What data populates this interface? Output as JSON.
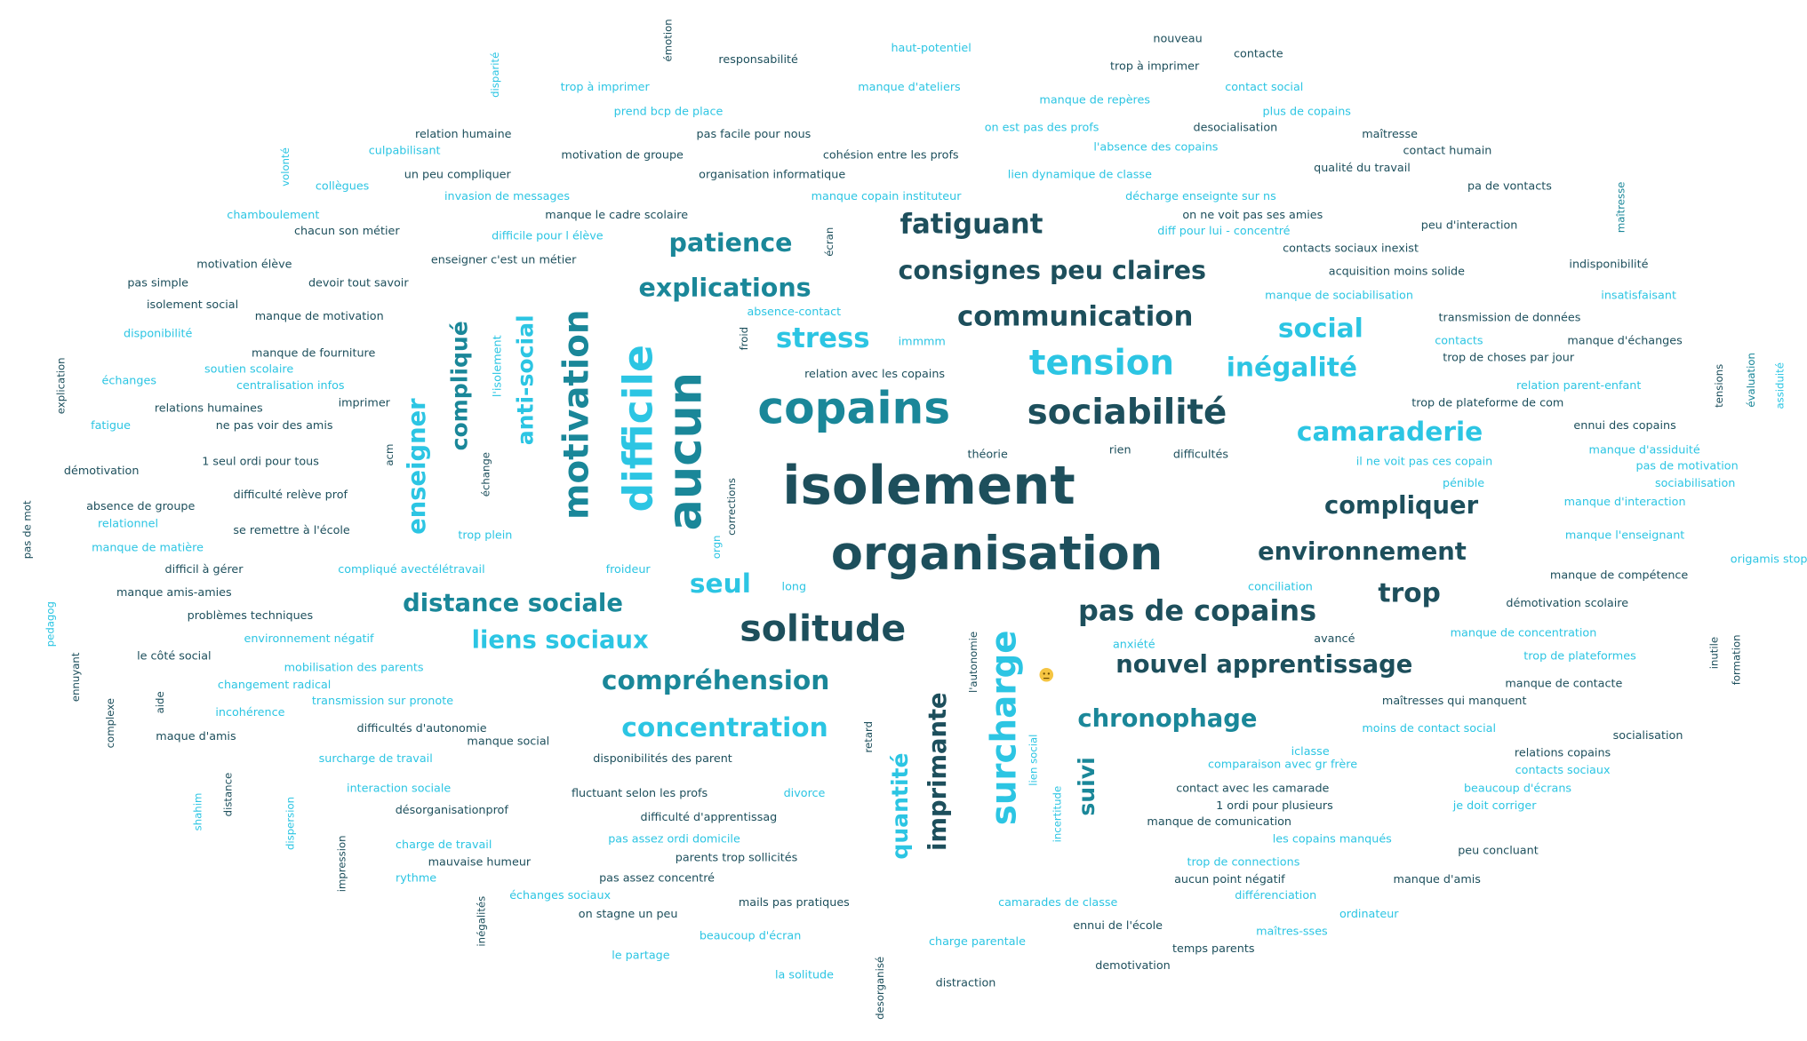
{
  "words": [
    "émotion",
    "responsabilité",
    "haut-potentiel",
    "nouveau",
    "contacte",
    "trop à imprimer",
    "disparité",
    "trop à imprimer",
    "manque d'ateliers",
    "contact social",
    "manque de repères",
    "prend bcp de place",
    "plus de copains",
    "relation humaine",
    "pas facile pour nous",
    "on est pas des profs",
    "desocialisation",
    "maîtresse",
    "volonté",
    "culpabilisant",
    "motivation de groupe",
    "cohésion entre les profs",
    "l'absence des copains",
    "contact humain",
    "qualité du travail",
    "un peu compliquer",
    "organisation informatique",
    "lien dynamique de classe",
    "collègues",
    "pa de vontacts",
    "maîtresse",
    "invasion de messages",
    "manque copain instituteur",
    "décharge enseignte sur ns",
    "chamboulement",
    "manque le cadre scolaire",
    "on ne voit pas ses amies",
    "chacun son métier",
    "difficile pour l élève",
    "diff pour lui - concentré",
    "peu d'interaction",
    "écran",
    "fatiguant",
    "patience",
    "contacts sociaux inexist",
    "motivation élève",
    "enseigner c'est un métier",
    "consignes peu claires",
    "acquisition moins solide",
    "indisponibilité",
    "pas simple",
    "devoir tout savoir",
    "explications",
    "isolement social",
    "manque de motivation",
    "absence-contact",
    "manque de sociabilisation",
    "insatisfaisant",
    "communication",
    "transmission de données",
    "disponibilité",
    "froid",
    "stress",
    "immmm",
    "social",
    "contacts",
    "manque d'échanges",
    "manque de fourniture",
    "explication",
    "tensions",
    "évaluation",
    "assiduité",
    "soutien scolaire",
    "tension",
    "inégalité",
    "trop de choses par jour",
    "échanges",
    "centralisation infos",
    "relation avec les copains",
    "relation parent-enfant",
    "compliqué",
    "l'isolement",
    "anti-social",
    "motivation",
    "difficile",
    "aucun",
    "enseigner",
    "relations humaines",
    "imprimer",
    "copains",
    "sociabilité",
    "trop de plateforme de com",
    "fatigue",
    "ne pas voir des amis",
    "ennui des copains",
    "camaraderie",
    "acm",
    "théorie",
    "rien",
    "difficultés",
    "manque d'assiduité",
    "démotivation",
    "1 seul ordi pour tous",
    "il ne voit pas ces copain",
    "pas de motivation",
    "échange",
    "corrections",
    "isolement",
    "pénible",
    "sociabilisation",
    "pas de mot",
    "difficulté relève prof",
    "compliquer",
    "manque d'interaction",
    "absence de groupe",
    "relationnel",
    "se remettre à l'école",
    "trop plein",
    "manque l'enseignant",
    "orgn",
    "manque de matière",
    "organisation",
    "environnement",
    "origamis stop",
    "difficil à gérer",
    "compliqué avectélétravail",
    "froideur",
    "manque de compétence",
    "manque amis-amies",
    "seul",
    "long",
    "trop",
    "conciliation",
    "démotivation scolaire",
    "distance sociale",
    "pas de copains",
    "problèmes techniques",
    "pedagog",
    "solitude",
    "surcharge",
    "l'autonomie",
    "liens sociaux",
    "environnement négatif",
    "anxiété",
    "avancé",
    "manque de concentration",
    "ennuyant",
    "le côté social",
    "nouvel apprentissage",
    "mobilisation des parents",
    "trop de plateformes",
    "inutile",
    "formation",
    "compréhension",
    "changement radical",
    "manque de contacte",
    "complexe",
    "aide",
    "transmission sur pronote",
    "maîtresses qui manquent",
    "incohérence",
    "imprimante",
    "quantité",
    "chronophage",
    "retard",
    "difficultés d'autonomie",
    "concentration",
    "moins de contact social",
    "socialisation",
    "maque d'amis",
    "manque social",
    "lien social",
    "suivi",
    "surcharge de travail",
    "disponibilités des parent",
    "iclasse",
    "relations copains",
    "comparaison avec gr frère",
    "contacts sociaux",
    "distance",
    "shahim",
    "dispersion",
    "interaction sociale",
    "fluctuant selon les profs",
    "divorce",
    "incertitude",
    "contact avec les camarade",
    "beaucoup d'écrans",
    "désorganisationprof",
    "1 ordi pour plusieurs",
    "je doit corriger",
    "difficulté d'apprentissag",
    "manque de comunication",
    "impression",
    "pas assez ordi domicile",
    "les copains manqués",
    "charge de travail",
    "peu concluant",
    "parents trop sollicités",
    "mauvaise humeur",
    "trop de connections",
    "rythme",
    "pas assez concentré",
    "aucun point négatif",
    "manque d'amis",
    "inégalités",
    "échanges sociaux",
    "mails pas pratiques",
    "camarades de classe",
    "différenciation",
    "on stagne un peu",
    "ordinateur",
    "ennui de l'école",
    "maîtres-sses",
    "beaucoup d'écran",
    "charge parentale",
    "temps parents",
    "le partage",
    "desorganisé",
    "demotivation",
    "la solitude",
    "distraction"
  ]
}
